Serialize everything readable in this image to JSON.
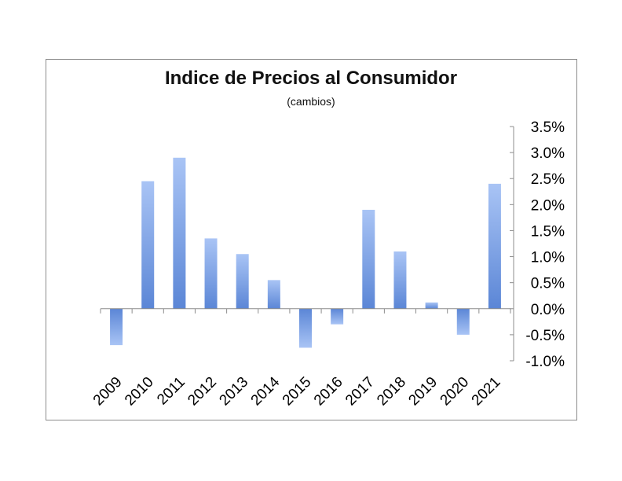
{
  "chart_data": {
    "type": "bar",
    "title": "Indice de Precios al Consumidor",
    "subtitle": "(cambios)",
    "categories": [
      "2009",
      "2010",
      "2011",
      "2012",
      "2013",
      "2014",
      "2015",
      "2016",
      "2017",
      "2018",
      "2019",
      "2020",
      "2021"
    ],
    "values": [
      -0.7,
      2.45,
      2.9,
      1.35,
      1.05,
      0.55,
      -0.75,
      -0.3,
      1.9,
      1.1,
      0.12,
      -0.5,
      2.4
    ],
    "ylim": [
      -1.0,
      3.5
    ],
    "yticks": [
      3.5,
      3.0,
      2.5,
      2.0,
      1.5,
      1.0,
      0.5,
      0.0,
      -0.5,
      -1.0
    ],
    "ytick_labels": [
      "3.5%",
      "3.0%",
      "2.5%",
      "2.0%",
      "1.5%",
      "1.0%",
      "0.5%",
      "0.0%",
      "-0.5%",
      "-1.0%"
    ],
    "y_axis_side": "right",
    "grid": false,
    "legend": "none",
    "bar_color_top": "#a9c4f5",
    "bar_color_bottom": "#5b86d6"
  }
}
